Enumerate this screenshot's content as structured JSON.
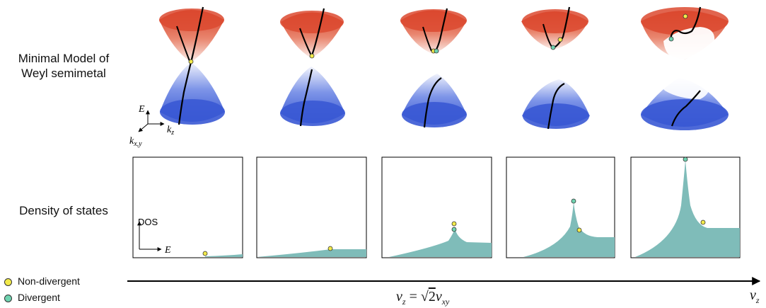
{
  "labels": {
    "model_line1": "Minimal Model of",
    "model_line2": "Weyl semimetal",
    "dos_title": "Density of states"
  },
  "axes3d": {
    "e": "E",
    "kz": "k",
    "kz_sub": "z",
    "kxy": "k",
    "kxy_sub": "x,y"
  },
  "dos_axes": {
    "y": "DOS",
    "x": "E"
  },
  "legend": [
    {
      "label": "Non-divergent",
      "color": "#f2ea4a"
    },
    {
      "label": "Divergent",
      "color": "#6fd3b0"
    }
  ],
  "arrow": {
    "left": "v",
    "left_sub": "z",
    "eq": " = ",
    "sqrt": "√",
    "two": "2",
    "v": "v",
    "v_sub": "xy",
    "right": "v",
    "right_sub": "z"
  },
  "colors": {
    "upper": "#d9412b",
    "lower": "#3c5fd6",
    "dos_fill": "#7fbcb9",
    "curve": "#000000"
  }
}
